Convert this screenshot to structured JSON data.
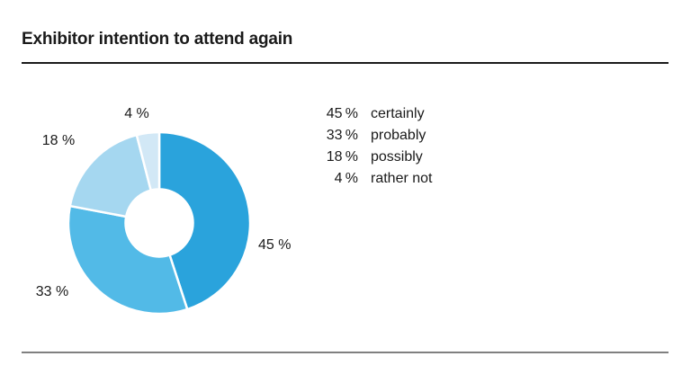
{
  "page": {
    "title": "Exhibitor intention to attend again"
  },
  "chart_data": {
    "type": "pie",
    "subtype": "donut",
    "title": "Exhibitor intention to attend again",
    "categories": [
      "certainly",
      "probably",
      "possibly",
      "rather not"
    ],
    "values": [
      45,
      33,
      18,
      4
    ],
    "unit": "%",
    "start_angle_deg": 0,
    "direction": "clockwise",
    "donut_hole_ratio": 0.37,
    "legend_position": "right",
    "gap_color": "#ffffff",
    "segments": [
      {
        "label": "certainly",
        "value": 45,
        "value_text": "45 %",
        "legend_value_text": "45 %",
        "color": "#2AA3DC"
      },
      {
        "label": "probably",
        "value": 33,
        "value_text": "33 %",
        "legend_value_text": "33 %",
        "color": "#52BAE7"
      },
      {
        "label": "possibly",
        "value": 18,
        "value_text": "18 %",
        "legend_value_text": "18 %",
        "color": "#A5D7F0"
      },
      {
        "label": "rather not",
        "value": 4,
        "value_text": "4 %",
        "legend_value_text": "4 %",
        "color": "#D2E8F6"
      }
    ]
  }
}
